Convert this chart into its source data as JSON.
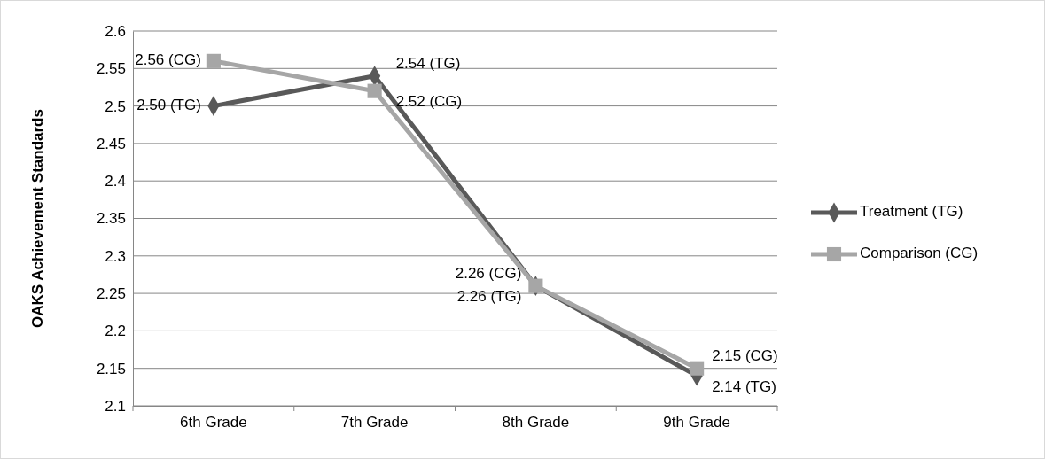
{
  "chart_data": {
    "type": "line",
    "ylabel": "OAKS Achievement Standards",
    "categories": [
      "6th Grade",
      "7th Grade",
      "8th Grade",
      "9th Grade"
    ],
    "series": [
      {
        "name": "Treatment (TG)",
        "color": "#595959",
        "marker": "diamond",
        "values": [
          2.5,
          2.54,
          2.26,
          2.14
        ],
        "value_labels": [
          "2.50 (TG)",
          "2.54 (TG)",
          "2.26 (TG)",
          "2.14 (TG)"
        ]
      },
      {
        "name": "Comparison (CG)",
        "color": "#a6a6a6",
        "marker": "square",
        "values": [
          2.56,
          2.52,
          2.26,
          2.15
        ],
        "value_labels": [
          "2.56 (CG)",
          "2.52 (CG)",
          "2.26 (CG)",
          "2.15 (CG)"
        ]
      }
    ],
    "ylim": [
      2.1,
      2.6
    ],
    "yticks": [
      2.1,
      2.15,
      2.2,
      2.25,
      2.3,
      2.35,
      2.4,
      2.45,
      2.5,
      2.55,
      2.6
    ],
    "grid": "y",
    "legend": "right",
    "line_style": "solid"
  }
}
